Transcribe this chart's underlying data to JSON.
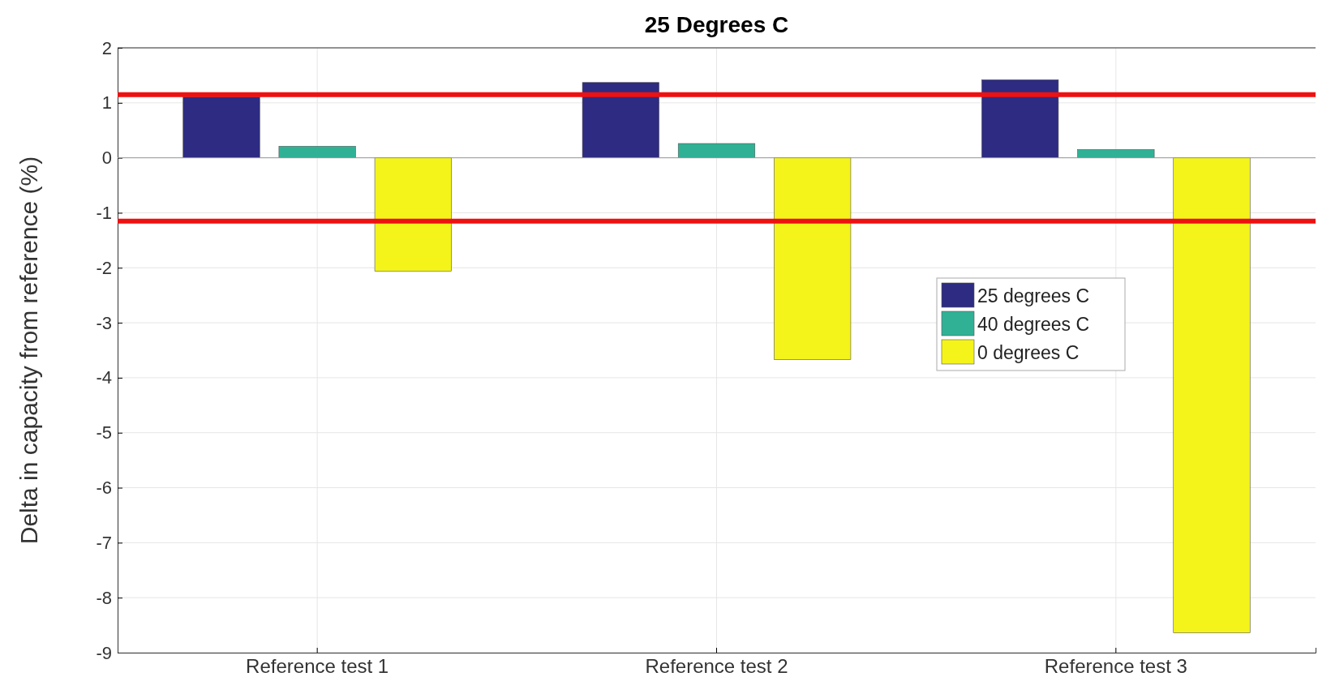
{
  "chart_data": {
    "type": "bar",
    "title": "25 Degrees C",
    "ylabel": "Delta in capacity from reference (%)",
    "categories": [
      "Reference test 1",
      "Reference test 2",
      "Reference test 3"
    ],
    "series": [
      {
        "name": "25 degrees C",
        "color": "#2e2b82",
        "values": [
          1.11,
          1.37,
          1.42
        ]
      },
      {
        "name": "40 degrees C",
        "color": "#30b196",
        "values": [
          0.21,
          0.26,
          0.15
        ]
      },
      {
        "name": "0 degrees C",
        "color": "#f4f41a",
        "values": [
          -2.06,
          -3.67,
          -8.64
        ]
      }
    ],
    "ylim": [
      -9,
      2
    ],
    "yticks": [
      -9,
      -8,
      -7,
      -6,
      -5,
      -4,
      -3,
      -2,
      -1,
      0,
      1,
      2
    ],
    "grid": true,
    "legend": "right",
    "ref_lines": [
      {
        "axis": "y",
        "value": 1.15,
        "color": "#ee1111"
      },
      {
        "axis": "y",
        "value": -1.15,
        "color": "#ee1111"
      }
    ]
  }
}
